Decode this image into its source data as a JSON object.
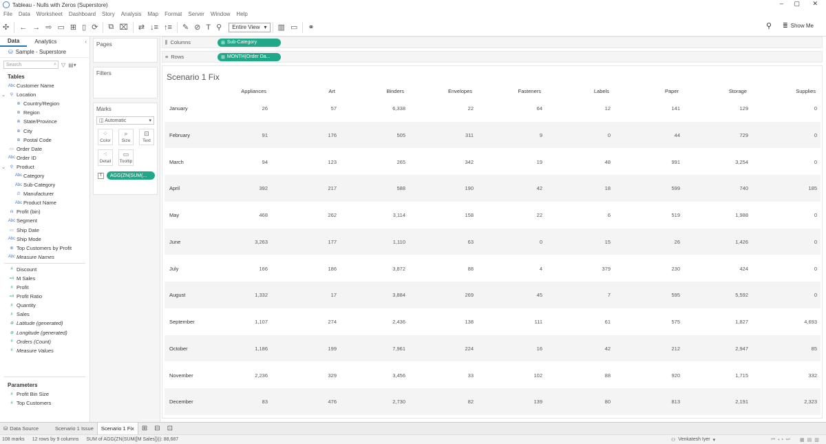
{
  "window": {
    "title": "Tableau - Nulls with Zeros (Superstore)",
    "minimize": "–",
    "maximize": "▢",
    "close": "✕"
  },
  "menu": [
    "File",
    "Data",
    "Worksheet",
    "Dashboard",
    "Story",
    "Analysis",
    "Map",
    "Format",
    "Server",
    "Window",
    "Help"
  ],
  "toolbar": {
    "fit_label": "Entire View",
    "show_me_label": "Show Me"
  },
  "datapane": {
    "tab_data": "Data",
    "tab_analytics": "Analytics",
    "datasource": "Sample - Superstore",
    "search_placeholder": "Search",
    "tables_title": "Tables",
    "fields": [
      {
        "label": "Customer Name",
        "icon": "Abc",
        "kind": "dim",
        "level": "l0"
      },
      {
        "label": "Location",
        "icon": "⚲",
        "kind": "dim",
        "level": "toggle",
        "toggle": "⌄"
      },
      {
        "label": "Country/Region",
        "icon": "⊕",
        "kind": "dim",
        "level": "l1"
      },
      {
        "label": "Region",
        "icon": "⊕",
        "kind": "dim",
        "level": "l1"
      },
      {
        "label": "State/Province",
        "icon": "⊕",
        "kind": "dim",
        "level": "l1"
      },
      {
        "label": "City",
        "icon": "⊕",
        "kind": "dim",
        "level": "l1"
      },
      {
        "label": "Postal Code",
        "icon": "⊕",
        "kind": "dim",
        "level": "l1"
      },
      {
        "label": "Order Date",
        "icon": "▭",
        "kind": "dim",
        "level": "l0"
      },
      {
        "label": "Order ID",
        "icon": "Abc",
        "kind": "dim",
        "level": "l0"
      },
      {
        "label": "Product",
        "icon": "⚲",
        "kind": "dim",
        "level": "toggle",
        "toggle": "⌄"
      },
      {
        "label": "Category",
        "icon": "Abc",
        "kind": "dim",
        "level": "l1"
      },
      {
        "label": "Sub-Category",
        "icon": "Abc",
        "kind": "dim",
        "level": "l1"
      },
      {
        "label": "Manufacturer",
        "icon": "∅",
        "kind": "dim",
        "level": "l1"
      },
      {
        "label": "Product Name",
        "icon": "Abc",
        "kind": "dim",
        "level": "l1"
      },
      {
        "label": "Profit (bin)",
        "icon": "ılı",
        "kind": "dim",
        "level": "l0"
      },
      {
        "label": "Segment",
        "icon": "Abc",
        "kind": "dim",
        "level": "l0"
      },
      {
        "label": "Ship Date",
        "icon": "▭",
        "kind": "dim",
        "level": "l0"
      },
      {
        "label": "Ship Mode",
        "icon": "Abc",
        "kind": "dim",
        "level": "l0"
      },
      {
        "label": "Top Customers by Profit",
        "icon": "⊗",
        "kind": "dim",
        "level": "l0"
      },
      {
        "label": "Measure Names",
        "icon": "Abc",
        "kind": "dim",
        "level": "l0",
        "italic": true
      },
      {
        "label": "Discount",
        "icon": "#",
        "kind": "meas",
        "level": "l0",
        "sep_before": true
      },
      {
        "label": "M Sales",
        "icon": "=#",
        "kind": "meas",
        "level": "l0"
      },
      {
        "label": "Profit",
        "icon": "#",
        "kind": "meas",
        "level": "l0"
      },
      {
        "label": "Profit Ratio",
        "icon": "=#",
        "kind": "meas",
        "level": "l0"
      },
      {
        "label": "Quantity",
        "icon": "#",
        "kind": "meas",
        "level": "l0"
      },
      {
        "label": "Sales",
        "icon": "#",
        "kind": "meas",
        "level": "l0"
      },
      {
        "label": "Latitude (generated)",
        "icon": "⊕",
        "kind": "meas",
        "level": "l0",
        "italic": true
      },
      {
        "label": "Longitude (generated)",
        "icon": "⊕",
        "kind": "meas",
        "level": "l0",
        "italic": true
      },
      {
        "label": "Orders (Count)",
        "icon": "#",
        "kind": "meas",
        "level": "l0",
        "italic": true
      },
      {
        "label": "Measure Values",
        "icon": "#",
        "kind": "meas",
        "level": "l0",
        "italic": true
      }
    ],
    "parameters_title": "Parameters",
    "parameters": [
      {
        "label": "Profit Bin Size",
        "icon": "#"
      },
      {
        "label": "Top Customers",
        "icon": "#"
      }
    ]
  },
  "cards": {
    "pages": "Pages",
    "filters": "Filters",
    "marks": "Marks",
    "mark_type": "Automatic",
    "color": "Color",
    "size": "Size",
    "text": "Text",
    "detail": "Detail",
    "tooltip": "Tooltip",
    "marks_pill": "AGG(ZN(SUM(..."
  },
  "shelves": {
    "columns_label": "Columns",
    "columns_pill": "Sub-Category",
    "rows_label": "Rows",
    "rows_pill": "MONTH(Order Da..."
  },
  "view": {
    "title": "Scenario 1 Fix",
    "columns": [
      "Appliances",
      "Art",
      "Binders",
      "Envelopes",
      "Fasteners",
      "Labels",
      "Paper",
      "Storage",
      "Supplies"
    ],
    "rows": [
      {
        "month": "January",
        "values": [
          "26",
          "57",
          "6,338",
          "22",
          "64",
          "12",
          "141",
          "129",
          "0"
        ]
      },
      {
        "month": "February",
        "values": [
          "91",
          "176",
          "505",
          "311",
          "9",
          "0",
          "44",
          "729",
          "0"
        ]
      },
      {
        "month": "March",
        "values": [
          "94",
          "123",
          "265",
          "342",
          "19",
          "48",
          "991",
          "3,254",
          "0"
        ]
      },
      {
        "month": "April",
        "values": [
          "392",
          "217",
          "588",
          "190",
          "42",
          "18",
          "599",
          "740",
          "185"
        ]
      },
      {
        "month": "May",
        "values": [
          "468",
          "262",
          "3,114",
          "158",
          "22",
          "6",
          "519",
          "1,988",
          "0"
        ]
      },
      {
        "month": "June",
        "values": [
          "3,263",
          "177",
          "1,110",
          "63",
          "0",
          "15",
          "26",
          "1,426",
          "0"
        ]
      },
      {
        "month": "July",
        "values": [
          "166",
          "186",
          "3,872",
          "88",
          "4",
          "379",
          "230",
          "424",
          "0"
        ]
      },
      {
        "month": "August",
        "values": [
          "1,332",
          "17",
          "3,884",
          "269",
          "45",
          "7",
          "595",
          "5,592",
          "0"
        ]
      },
      {
        "month": "September",
        "values": [
          "1,107",
          "274",
          "2,436",
          "138",
          "111",
          "61",
          "575",
          "1,827",
          "4,693"
        ]
      },
      {
        "month": "October",
        "values": [
          "1,186",
          "199",
          "7,961",
          "224",
          "16",
          "42",
          "212",
          "2,947",
          "85"
        ]
      },
      {
        "month": "November",
        "values": [
          "2,236",
          "329",
          "3,456",
          "33",
          "102",
          "88",
          "920",
          "1,715",
          "332"
        ]
      },
      {
        "month": "December",
        "values": [
          "83",
          "476",
          "2,730",
          "82",
          "139",
          "80",
          "813",
          "2,191",
          "2,323"
        ]
      }
    ]
  },
  "sheet_tabs": {
    "data_source": "Data Source",
    "tabs": [
      "Scenario 1 Issue",
      "Scenario 1 Fix"
    ],
    "active": "Scenario 1 Fix"
  },
  "status": {
    "marks": "108 marks",
    "rows_cols": "12 rows by 9 columns",
    "sum": "SUM of AGG(ZN(SUM([M Sales]))): 88,687",
    "user": "Venkatesh Iyer"
  }
}
